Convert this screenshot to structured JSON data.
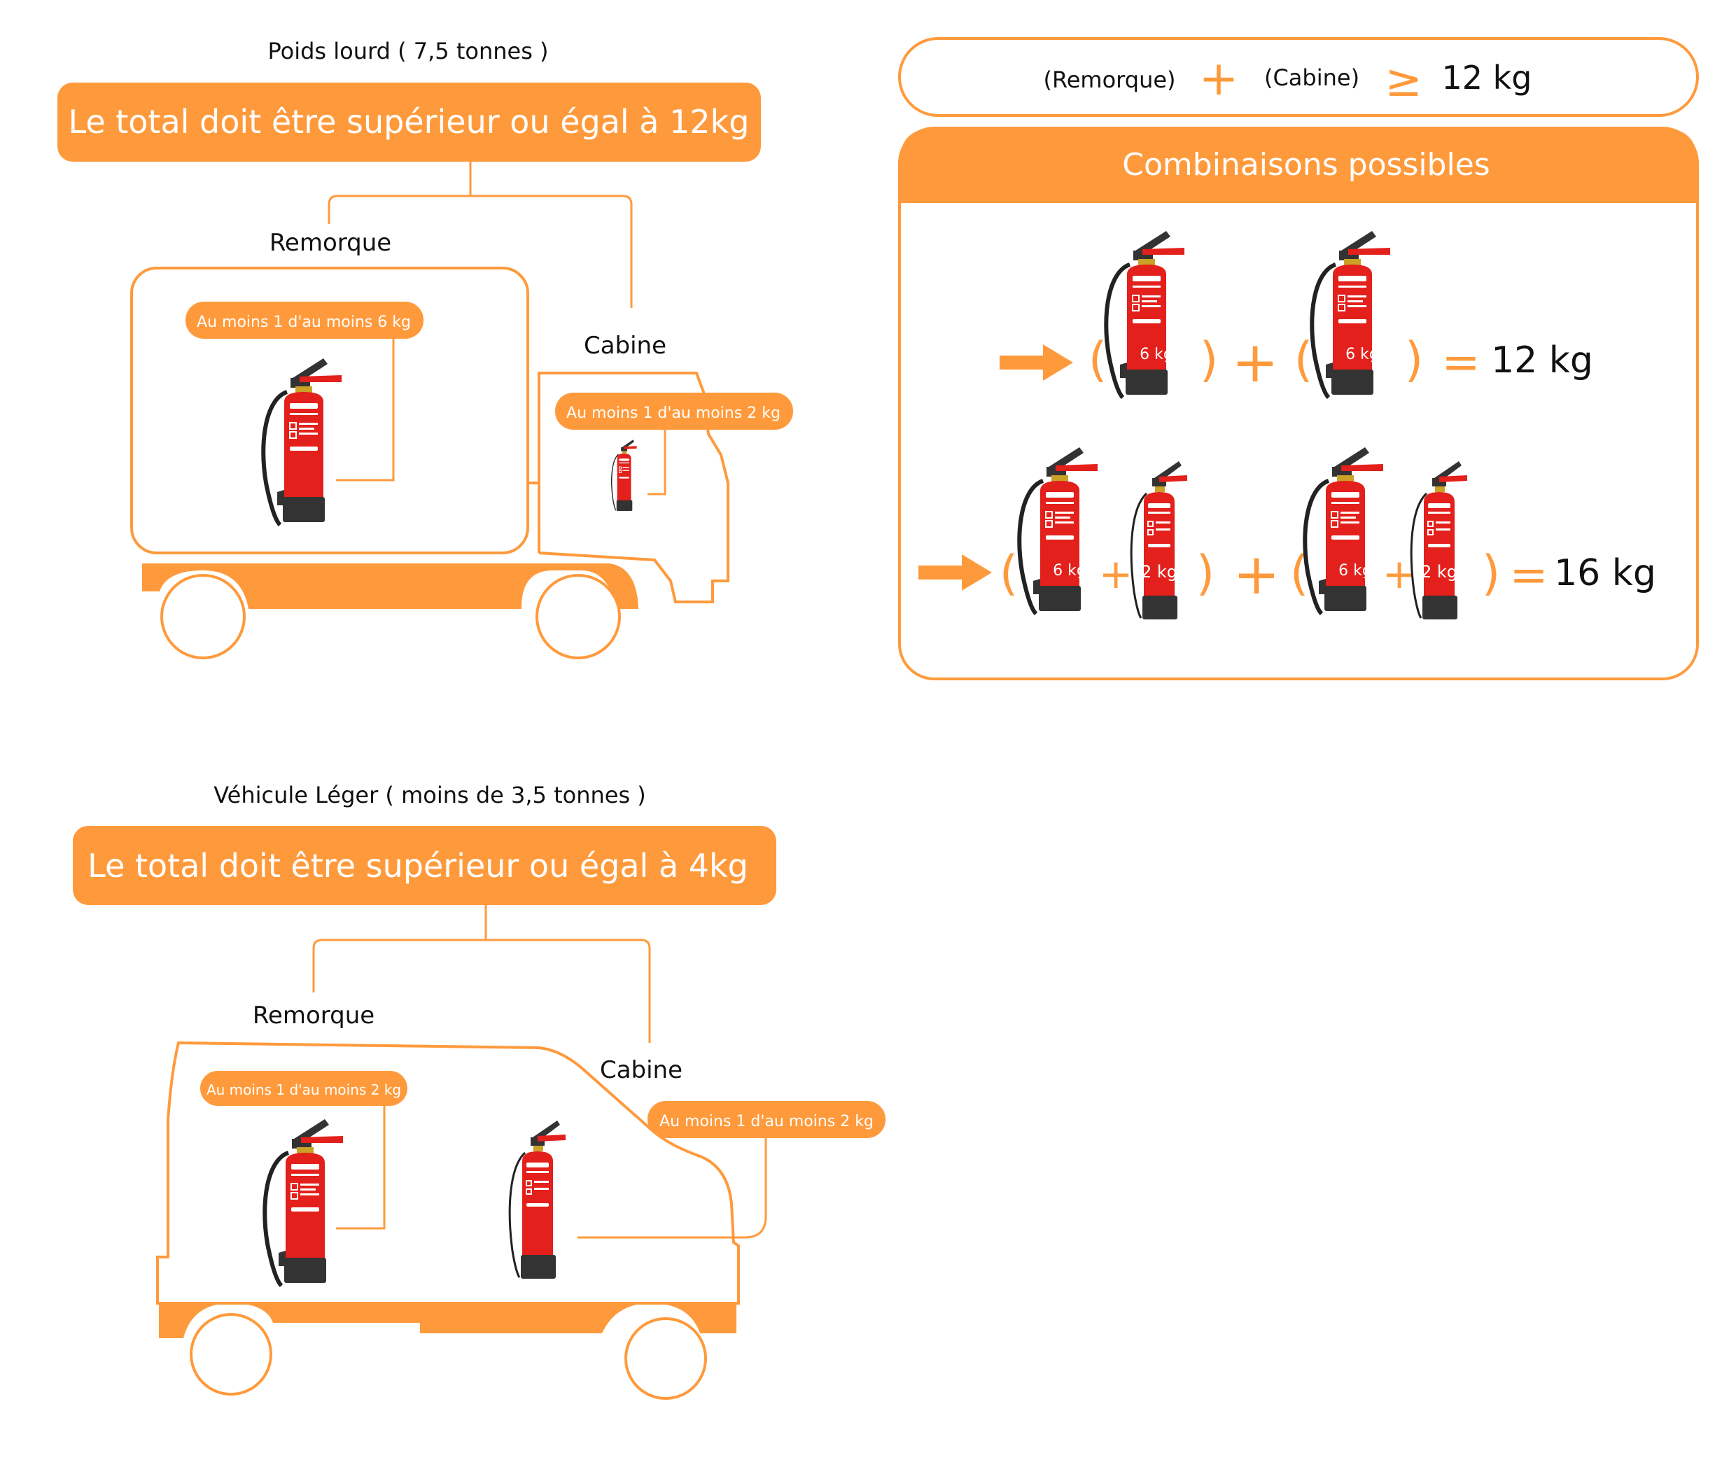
{
  "colors": {
    "orange": "#FF9A3C",
    "red": "#E3201B",
    "dark": "#333333",
    "white": "#FFFFFF",
    "text": "#111111"
  },
  "heavy": {
    "heading": "Poids lourd ( 7,5 tonnes )",
    "banner": "Le total doit être supérieur ou égal à 12kg",
    "trailer_label": "Remorque",
    "cab_label": "Cabine",
    "trailer_tag": "Au moins 1 d'au moins 6 kg",
    "cab_tag": "Au moins 1 d'au moins 2 kg"
  },
  "light": {
    "heading": "Véhicule Léger  ( moins de 3,5 tonnes )",
    "banner": "Le total doit être supérieur ou égal à 4kg",
    "trailer_label": "Remorque",
    "cab_label": "Cabine",
    "trailer_tag": "Au moins 1 d'au moins 2 kg",
    "cab_tag": "Au moins 1 d'au moins 2 kg"
  },
  "formula": {
    "left": "(Remorque)",
    "plus": "+",
    "right": "(Cabine)",
    "gte": "≥",
    "result": "12 kg"
  },
  "combinations": {
    "title": "Combinaisons possibles",
    "row1": {
      "first": "6 kg",
      "second": "6 kg",
      "plus": "+",
      "equals": "=",
      "total": "12 kg"
    },
    "row2": {
      "group1_a": "6 kg",
      "group1_b": "2 kg",
      "group2_a": "6 kg",
      "group2_b": "2 kg",
      "plus": "+",
      "equals": "=",
      "total": "16 kg"
    },
    "open_paren": "(",
    "close_paren": ")"
  },
  "icons": {
    "extinguisher": "fire-extinguisher-icon",
    "arrow": "arrow-right-icon"
  }
}
